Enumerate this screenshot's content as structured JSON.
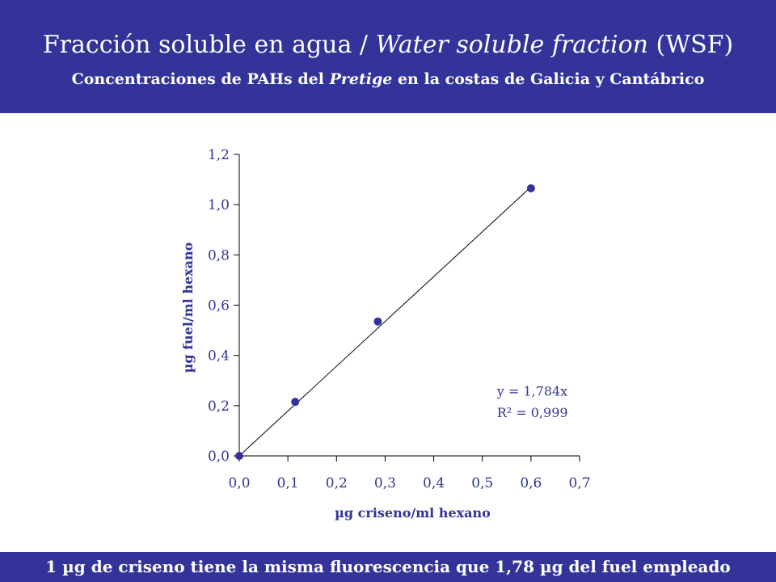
{
  "header": {
    "title_plain": "Fracción soluble en agua / ",
    "title_italic": "Water soluble fraction",
    "title_end": " (WSF)",
    "subtitle_plain": "Concentraciones de PAHs del ",
    "subtitle_italic": "Pretige",
    "subtitle_end": " en la costas de Galicia y Cantábrico"
  },
  "footer": {
    "text": "1 µg de criseno tiene la misma fluorescencia que 1,78 µg del fuel empleado"
  },
  "colors": {
    "brand": "#333399",
    "marker": "#333399",
    "line": "#000000",
    "axis": "#000000"
  },
  "chart_data": {
    "type": "scatter",
    "title": "",
    "xlabel": "µg criseno/ml hexano",
    "ylabel": "µg fuel/ml hexano",
    "xlim": [
      0,
      0.7
    ],
    "ylim": [
      0,
      1.2
    ],
    "xticks": [
      0.0,
      0.1,
      0.2,
      0.3,
      0.4,
      0.5,
      0.6,
      0.7
    ],
    "yticks": [
      0.0,
      0.2,
      0.4,
      0.6,
      0.8,
      1.0,
      1.2
    ],
    "xtick_labels": [
      "0,0",
      "0,1",
      "0,2",
      "0,3",
      "0,4",
      "0,5",
      "0,6",
      "0,7"
    ],
    "ytick_labels": [
      "0,0",
      "0,2",
      "0,4",
      "0,6",
      "0,8",
      "1,0",
      "1,2"
    ],
    "grid": false,
    "series": [
      {
        "x": [
          0.0,
          0.115,
          0.285,
          0.6
        ],
        "y": [
          0.0,
          0.215,
          0.535,
          1.065
        ]
      }
    ],
    "trendline": {
      "slope": 1.784,
      "x_range": [
        0.0,
        0.6
      ]
    },
    "annotations": [
      {
        "text": "y = 1,784x",
        "x": 0.53,
        "y": 0.24
      },
      {
        "text": "R² = 0,999",
        "x": 0.53,
        "y": 0.155
      }
    ]
  }
}
